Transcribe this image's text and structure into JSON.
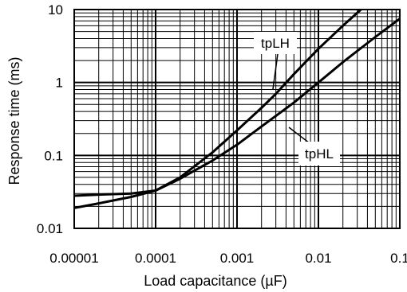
{
  "chart_data": {
    "type": "line",
    "xscale": "log",
    "yscale": "log",
    "xlim": [
      1e-05,
      0.1
    ],
    "ylim": [
      0.01,
      10
    ],
    "xlabel": "Load capacitance (µF)",
    "ylabel": "Response time (ms)",
    "grid": true,
    "x_ticks": [
      "0.00001",
      "0.0001",
      "0.001",
      "0.01",
      "0.1"
    ],
    "y_ticks": [
      "0.01",
      "0.1",
      "1",
      "10"
    ],
    "series": [
      {
        "name": "tpLH",
        "x": [
          1e-05,
          2e-05,
          5e-05,
          0.0001,
          0.0002,
          0.0005,
          0.001,
          0.002,
          0.003,
          0.005,
          0.01,
          0.02,
          0.04
        ],
        "y": [
          0.028,
          0.029,
          0.03,
          0.033,
          0.05,
          0.11,
          0.22,
          0.45,
          0.7,
          1.3,
          2.9,
          6.0,
          12
        ]
      },
      {
        "name": "tpHL",
        "x": [
          1e-05,
          2e-05,
          5e-05,
          0.0001,
          0.0002,
          0.0005,
          0.001,
          0.002,
          0.005,
          0.01,
          0.02,
          0.05,
          0.1
        ],
        "y": [
          0.019,
          0.022,
          0.027,
          0.033,
          0.048,
          0.085,
          0.14,
          0.25,
          0.53,
          1.0,
          1.9,
          4.2,
          7.5
        ]
      }
    ]
  }
}
